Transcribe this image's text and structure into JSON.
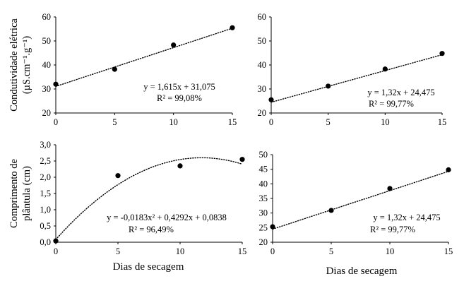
{
  "chart_data": [
    {
      "type": "scatter",
      "panel": "top-left",
      "x": [
        0,
        5,
        10,
        15
      ],
      "y": [
        32,
        38.2,
        48.3,
        55.5
      ],
      "xlim": [
        0,
        15
      ],
      "ylim": [
        20,
        60
      ],
      "xticks": [
        "0",
        "5",
        "10",
        "15"
      ],
      "yticks": [
        "20",
        "30",
        "40",
        "50",
        "60"
      ],
      "ylabel": [
        "Condutividade elétrica",
        "(µS.cm⁻¹.g⁻¹)"
      ],
      "xlabel": "",
      "trendline": {
        "type": "linear",
        "a": 1.615,
        "b": 31.075
      },
      "equation": "y = 1,615x + 31,075",
      "r2": "R² = 99,08%",
      "grid": false
    },
    {
      "type": "scatter",
      "panel": "top-right",
      "x": [
        0,
        5,
        10,
        15
      ],
      "y": [
        25.5,
        31.2,
        38.3,
        44.8
      ],
      "xlim": [
        0,
        15
      ],
      "ylim": [
        20,
        60
      ],
      "xticks": [
        "0",
        "5",
        "10",
        "15"
      ],
      "yticks": [
        "20",
        "30",
        "40",
        "50",
        "60"
      ],
      "ylabel": [],
      "xlabel": "",
      "trendline": {
        "type": "linear",
        "a": 1.32,
        "b": 24.475
      },
      "equation": "y = 1,32x + 24,475",
      "r2": "R² = 99,77%",
      "grid": false
    },
    {
      "type": "scatter",
      "panel": "bottom-left",
      "x": [
        0,
        5,
        10,
        15
      ],
      "y": [
        0.04,
        2.05,
        2.35,
        2.55
      ],
      "xlim": [
        0,
        15
      ],
      "ylim": [
        0,
        3
      ],
      "xticks": [
        "0",
        "5",
        "10",
        "15"
      ],
      "yticks": [
        "0,0",
        "0,5",
        "1,0",
        "1,5",
        "2,0",
        "2,5",
        "3,0"
      ],
      "ylabel": [
        "Comprimento de",
        "plântula (cm)"
      ],
      "xlabel": "Dias de secagem",
      "trendline": {
        "type": "poly2",
        "a": -0.0183,
        "b": 0.4292,
        "c": 0.0838
      },
      "equation": "y = -0,0183x² + 0,4292x + 0,0838",
      "r2": "R² = 96,49%",
      "grid": false
    },
    {
      "type": "scatter",
      "panel": "bottom-right",
      "x": [
        0,
        5,
        10,
        15
      ],
      "y": [
        25.3,
        30.9,
        38.4,
        44.8
      ],
      "xlim": [
        0,
        15
      ],
      "ylim": [
        20,
        50
      ],
      "xticks": [
        "0",
        "5",
        "10",
        "15"
      ],
      "yticks": [
        "20",
        "25",
        "30",
        "35",
        "40",
        "45",
        "50"
      ],
      "ylabel": [],
      "xlabel": "Dias de secagem",
      "trendline": {
        "type": "linear",
        "a": 1.32,
        "b": 24.475
      },
      "equation": "y = 1,32x + 24,475",
      "r2": "R² = 99,77%",
      "grid": false
    }
  ]
}
